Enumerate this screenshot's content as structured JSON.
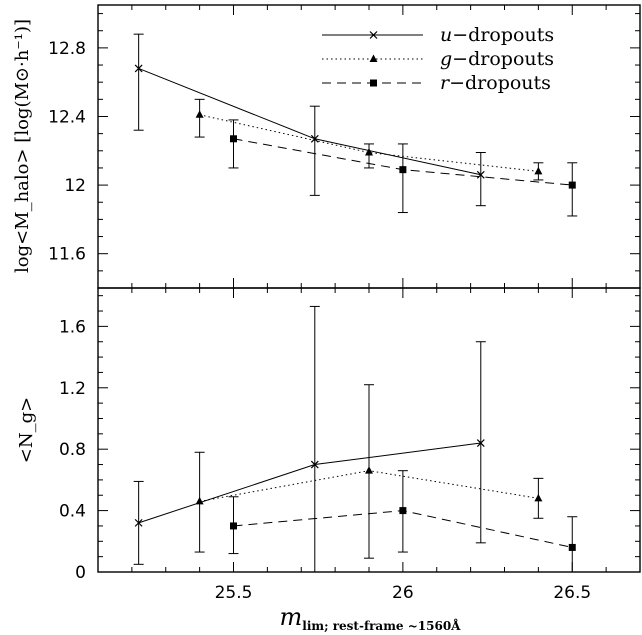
{
  "chart_data": {
    "type": "line",
    "shared_xlabel": {
      "main": "m",
      "sub": "lim; rest-frame ~1560Å"
    },
    "xlim": [
      25.1,
      26.7
    ],
    "xticks": [
      "25.5",
      "26",
      "26.5"
    ],
    "xtick_values": [
      25.5,
      26.0,
      26.5
    ],
    "legend": {
      "placement": "top-right",
      "entries": [
        {
          "letter": "u",
          "suffix": "−dropouts",
          "series": "u"
        },
        {
          "letter": "g",
          "suffix": "−dropouts",
          "series": "g"
        },
        {
          "letter": "r",
          "suffix": "−dropouts",
          "series": "r"
        }
      ]
    },
    "panels": [
      {
        "id": "top",
        "ylabel": "log<M_halo> [log(M⊙·h⁻¹)]",
        "ylim": [
          11.4,
          13.05
        ],
        "yticks": [
          "11.6",
          "12",
          "12.4",
          "12.8"
        ],
        "ytick_values": [
          11.6,
          12.0,
          12.4,
          12.8
        ],
        "series": [
          {
            "key": "u",
            "marker": "x",
            "line": "solid",
            "points": [
              {
                "x": 25.22,
                "y": 12.68,
                "lo": 12.32,
                "hi": 12.88
              },
              {
                "x": 25.74,
                "y": 12.27,
                "lo": 11.94,
                "hi": 12.46
              },
              {
                "x": 26.23,
                "y": 12.06,
                "lo": 11.88,
                "hi": 12.19
              }
            ]
          },
          {
            "key": "g",
            "marker": "triangle",
            "line": "dotted",
            "points": [
              {
                "x": 25.4,
                "y": 12.41,
                "lo": 12.28,
                "hi": 12.5
              },
              {
                "x": 25.9,
                "y": 12.19,
                "lo": 12.1,
                "hi": 12.24
              },
              {
                "x": 26.4,
                "y": 12.08,
                "lo": 12.03,
                "hi": 12.13
              }
            ]
          },
          {
            "key": "r",
            "marker": "square",
            "line": "dashed",
            "points": [
              {
                "x": 25.5,
                "y": 12.27,
                "lo": 12.1,
                "hi": 12.38
              },
              {
                "x": 26.0,
                "y": 12.09,
                "lo": 11.84,
                "hi": 12.24
              },
              {
                "x": 26.5,
                "y": 12.0,
                "lo": 11.82,
                "hi": 12.13
              }
            ]
          }
        ]
      },
      {
        "id": "bottom",
        "ylabel": "<N_g>",
        "ylim": [
          0,
          1.85
        ],
        "yticks": [
          "0",
          "0.4",
          "0.8",
          "1.2",
          "1.6"
        ],
        "ytick_values": [
          0,
          0.4,
          0.8,
          1.2,
          1.6
        ],
        "series": [
          {
            "key": "u",
            "marker": "x",
            "line": "solid",
            "points": [
              {
                "x": 25.22,
                "y": 0.32,
                "lo": 0.05,
                "hi": 0.59
              },
              {
                "x": 25.74,
                "y": 0.7,
                "lo": 0.0,
                "hi": 1.73
              },
              {
                "x": 26.23,
                "y": 0.84,
                "lo": 0.19,
                "hi": 1.5
              }
            ]
          },
          {
            "key": "g",
            "marker": "triangle",
            "line": "dotted",
            "points": [
              {
                "x": 25.4,
                "y": 0.46,
                "lo": 0.13,
                "hi": 0.78
              },
              {
                "x": 25.9,
                "y": 0.66,
                "lo": 0.09,
                "hi": 1.22
              },
              {
                "x": 26.4,
                "y": 0.48,
                "lo": 0.35,
                "hi": 0.61
              }
            ]
          },
          {
            "key": "r",
            "marker": "square",
            "line": "dashed",
            "points": [
              {
                "x": 25.5,
                "y": 0.3,
                "lo": 0.12,
                "hi": 0.49
              },
              {
                "x": 26.0,
                "y": 0.4,
                "lo": 0.13,
                "hi": 0.66
              },
              {
                "x": 26.5,
                "y": 0.16,
                "lo": 0.0,
                "hi": 0.36
              }
            ]
          }
        ]
      }
    ]
  }
}
